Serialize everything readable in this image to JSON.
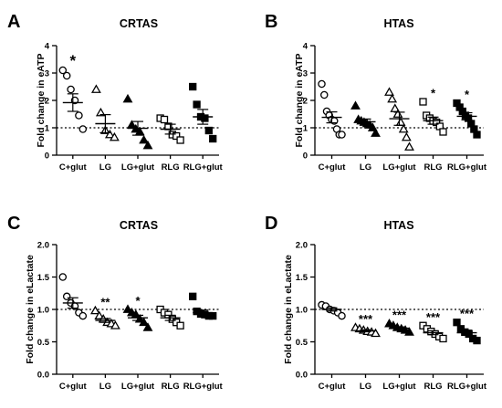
{
  "chart_data": [
    {
      "type": "scatter",
      "panel": "A",
      "title": "CRTAS",
      "ylabel": "Fold change in eATP",
      "ylim": [
        0,
        4
      ],
      "yticks": [
        0,
        1,
        2,
        3,
        4
      ],
      "yticklabels": [
        "0",
        "1",
        "2",
        "3",
        "4"
      ],
      "reference_line": 1,
      "categories": [
        "C+glut",
        "LG",
        "LG+glut",
        "RLG",
        "RLG+glut"
      ],
      "markers": [
        "circle-open",
        "triangle-open",
        "triangle-filled",
        "square-open",
        "square-filled"
      ],
      "points": [
        [
          3.1,
          2.9,
          2.4,
          2.0,
          1.45,
          0.95
        ],
        [
          2.4,
          1.55,
          0.9,
          0.75,
          0.65
        ],
        [
          2.05,
          1.1,
          0.95,
          0.85,
          0.55,
          0.35
        ],
        [
          1.35,
          1.3,
          1.05,
          0.75,
          0.7,
          0.55
        ],
        [
          2.5,
          1.85,
          1.4,
          1.35,
          0.9,
          0.6
        ]
      ],
      "mean": [
        1.92,
        1.15,
        0.98,
        0.95,
        1.4
      ],
      "sem": [
        0.32,
        0.33,
        0.25,
        0.18,
        0.27
      ],
      "significance": [
        "*",
        "",
        "",
        "",
        ""
      ]
    },
    {
      "type": "scatter",
      "panel": "B",
      "title": "HTAS",
      "ylabel": "Fold change in eATP",
      "ylim": [
        0,
        4
      ],
      "yticks": [
        0,
        1,
        2,
        3,
        4
      ],
      "yticklabels": [
        "0",
        "1",
        "2",
        "3",
        "4"
      ],
      "reference_line": 1,
      "categories": [
        "C+glut",
        "LG",
        "LG+glut",
        "RLG",
        "RLG+glut"
      ],
      "markers": [
        "circle-open",
        "triangle-filled",
        "triangle-open",
        "square-open",
        "square-filled"
      ],
      "points": [
        [
          2.6,
          2.2,
          1.6,
          1.45,
          1.3,
          1.25,
          0.95,
          0.75,
          0.75
        ],
        [
          1.8,
          1.3,
          1.25,
          1.2,
          1.15,
          1.1,
          1.0,
          0.8
        ],
        [
          2.3,
          2.05,
          1.7,
          1.5,
          1.2,
          0.95,
          0.65,
          0.3
        ],
        [
          1.95,
          1.45,
          1.35,
          1.25,
          1.2,
          1.05,
          0.85
        ],
        [
          1.9,
          1.75,
          1.6,
          1.45,
          1.35,
          1.15,
          0.95,
          0.75
        ]
      ],
      "mean": [
        1.38,
        1.22,
        1.33,
        1.26,
        1.42
      ],
      "sem": [
        0.2,
        0.1,
        0.24,
        0.13,
        0.13
      ],
      "significance": [
        "",
        "",
        "",
        "*",
        "*"
      ]
    },
    {
      "type": "scatter",
      "panel": "C",
      "title": "CRTAS",
      "ylabel": "Fold change in eLactate",
      "ylim": [
        0,
        2
      ],
      "yticks": [
        0,
        0.5,
        1,
        1.5,
        2
      ],
      "yticklabels": [
        "0.0",
        "0.5",
        "1.0",
        "1.5",
        "2.0"
      ],
      "reference_line": 1,
      "categories": [
        "C+glut",
        "LG",
        "LG+glut",
        "RLG",
        "RLG+glut"
      ],
      "markers": [
        "circle-open",
        "triangle-open",
        "triangle-filled",
        "square-open",
        "square-filled"
      ],
      "points": [
        [
          1.5,
          1.2,
          1.1,
          1.05,
          0.95,
          0.9
        ],
        [
          0.98,
          0.9,
          0.85,
          0.8,
          0.78,
          0.75
        ],
        [
          1.0,
          0.95,
          0.92,
          0.85,
          0.8,
          0.72
        ],
        [
          1.0,
          0.95,
          0.92,
          0.85,
          0.8,
          0.75
        ],
        [
          1.2,
          0.97,
          0.93,
          0.92,
          0.9,
          0.9
        ]
      ],
      "mean": [
        1.1,
        0.83,
        0.87,
        0.87,
        0.95
      ],
      "sem": [
        0.08,
        0.03,
        0.04,
        0.04,
        0.04
      ],
      "significance": [
        "",
        "**",
        "*",
        "",
        ""
      ]
    },
    {
      "type": "scatter",
      "panel": "D",
      "title": "HTAS",
      "ylabel": "Fold change in eLactate",
      "ylim": [
        0,
        2
      ],
      "yticks": [
        0,
        0.5,
        1,
        1.5,
        2
      ],
      "yticklabels": [
        "0.0",
        "0.5",
        "1.0",
        "1.5",
        "2.0"
      ],
      "reference_line": 1,
      "categories": [
        "C+glut",
        "LG",
        "LG+glut",
        "RLG",
        "RLG+glut"
      ],
      "markers": [
        "circle-open",
        "triangle-open",
        "triangle-filled",
        "square-open",
        "square-filled"
      ],
      "points": [
        [
          1.07,
          1.05,
          1.0,
          0.98,
          0.95,
          0.9
        ],
        [
          0.72,
          0.7,
          0.68,
          0.66,
          0.65,
          0.63
        ],
        [
          0.78,
          0.75,
          0.72,
          0.7,
          0.68,
          0.65
        ],
        [
          0.75,
          0.7,
          0.66,
          0.62,
          0.58,
          0.55
        ],
        [
          0.8,
          0.7,
          0.65,
          0.62,
          0.55,
          0.52
        ]
      ],
      "mean": [
        1.0,
        0.67,
        0.71,
        0.64,
        0.64
      ],
      "sem": [
        0.025,
        0.015,
        0.02,
        0.03,
        0.04
      ],
      "significance": [
        "",
        "***",
        "***",
        "***",
        "***"
      ]
    }
  ]
}
